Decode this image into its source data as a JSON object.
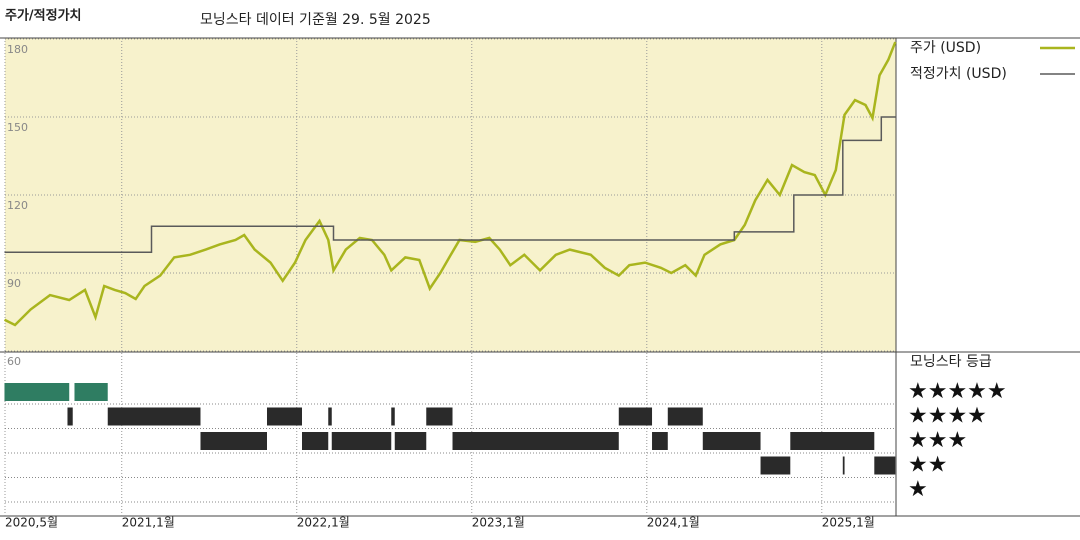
{
  "chart_data": {
    "type": "line",
    "title": "주가/적정가치",
    "subtitle": "모닝스타 데이터 기준월 29. 5월 2025",
    "xlim": [
      2020.333,
      2025.424
    ],
    "xticks": [
      {
        "value": 2020.333,
        "label": "2020,5월"
      },
      {
        "value": 2021.0,
        "label": "2021,1월"
      },
      {
        "value": 2022.0,
        "label": "2022,1월"
      },
      {
        "value": 2023.0,
        "label": "2023,1월"
      },
      {
        "value": 2024.0,
        "label": "2024,1월"
      },
      {
        "value": 2025.0,
        "label": "2025,1월"
      }
    ],
    "ylim": [
      60,
      180
    ],
    "yticks": [
      60,
      90,
      120,
      150,
      180
    ],
    "grid": true,
    "background": "#f7f2cc",
    "series": [
      {
        "name": "주가 (USD)",
        "color": "#a9b51e",
        "step": false,
        "x": [
          2020.33,
          2020.39,
          2020.48,
          2020.59,
          2020.7,
          2020.79,
          2020.85,
          2020.9,
          2020.96,
          2021.02,
          2021.08,
          2021.13,
          2021.22,
          2021.3,
          2021.39,
          2021.48,
          2021.56,
          2021.65,
          2021.7,
          2021.76,
          2021.85,
          2021.92,
          2021.99,
          2022.05,
          2022.13,
          2022.18,
          2022.21,
          2022.28,
          2022.36,
          2022.43,
          2022.5,
          2022.54,
          2022.62,
          2022.7,
          2022.76,
          2022.82,
          2022.88,
          2022.93,
          2023.02,
          2023.1,
          2023.16,
          2023.22,
          2023.3,
          2023.39,
          2023.48,
          2023.56,
          2023.68,
          2023.76,
          2023.84,
          2023.9,
          2023.99,
          2024.08,
          2024.14,
          2024.22,
          2024.28,
          2024.33,
          2024.42,
          2024.5,
          2024.56,
          2024.62,
          2024.69,
          2024.76,
          2024.83,
          2024.9,
          2024.96,
          2025.02,
          2025.08,
          2025.13,
          2025.19,
          2025.25,
          2025.29,
          2025.33,
          2025.38,
          2025.42
        ],
        "values": [
          72,
          70,
          76,
          81.5,
          79.6,
          83.5,
          73,
          85,
          83.5,
          82.3,
          80,
          85,
          89,
          96,
          97,
          99,
          101,
          102.7,
          104.6,
          99,
          94,
          87,
          94,
          102.7,
          110,
          102.7,
          91,
          99,
          103.5,
          102.7,
          97,
          91,
          96,
          95,
          84,
          90,
          97,
          102.7,
          102,
          103.5,
          99,
          93,
          97,
          91,
          97,
          99,
          97,
          92,
          89,
          93,
          94,
          92,
          90,
          93,
          89,
          97,
          101,
          102.7,
          108.5,
          118,
          125.8,
          120,
          131.5,
          128.8,
          127.7,
          120,
          129.6,
          150.8,
          156.5,
          154.6,
          149.6,
          166,
          172,
          178.8
        ]
      },
      {
        "name": "적정가치 (USD)",
        "color": "#5a5a5a",
        "step": true,
        "x": [
          2020.33,
          2021.17,
          2022.21,
          2024.5,
          2024.84,
          2025.12,
          2025.34
        ],
        "values": [
          98,
          108,
          102.7,
          105.8,
          120,
          141,
          150
        ]
      }
    ],
    "rating": {
      "title": "모닝스타 등급",
      "levels": [
        "★★★★★",
        "★★★★",
        "★★★",
        "★★",
        "★"
      ],
      "colors": [
        "#2f7d62",
        "#2a2a2a",
        "#2a2a2a",
        "#2a2a2a",
        "#2a2a2a"
      ],
      "segments": [
        {
          "stars": 5,
          "start": 2020.33,
          "end": 2020.7
        },
        {
          "stars": 5,
          "start": 2020.73,
          "end": 2020.92
        },
        {
          "stars": 4,
          "start": 2020.69,
          "end": 2020.72
        },
        {
          "stars": 4,
          "start": 2020.92,
          "end": 2021.45
        },
        {
          "stars": 4,
          "start": 2021.83,
          "end": 2022.03
        },
        {
          "stars": 4,
          "start": 2022.18,
          "end": 2022.2
        },
        {
          "stars": 4,
          "start": 2022.54,
          "end": 2022.56
        },
        {
          "stars": 4,
          "start": 2022.74,
          "end": 2022.89
        },
        {
          "stars": 4,
          "start": 2023.84,
          "end": 2024.03
        },
        {
          "stars": 4,
          "start": 2024.12,
          "end": 2024.32
        },
        {
          "stars": 3,
          "start": 2021.45,
          "end": 2021.83
        },
        {
          "stars": 3,
          "start": 2022.03,
          "end": 2022.18
        },
        {
          "stars": 3,
          "start": 2022.2,
          "end": 2022.54
        },
        {
          "stars": 3,
          "start": 2022.56,
          "end": 2022.74
        },
        {
          "stars": 3,
          "start": 2022.89,
          "end": 2023.84
        },
        {
          "stars": 3,
          "start": 2024.03,
          "end": 2024.12
        },
        {
          "stars": 3,
          "start": 2024.32,
          "end": 2024.65
        },
        {
          "stars": 3,
          "start": 2024.82,
          "end": 2025.3
        },
        {
          "stars": 2,
          "start": 2024.65,
          "end": 2024.82
        },
        {
          "stars": 2,
          "start": 2025.12,
          "end": 2025.13
        },
        {
          "stars": 2,
          "start": 2025.3,
          "end": 2025.42
        }
      ]
    }
  }
}
